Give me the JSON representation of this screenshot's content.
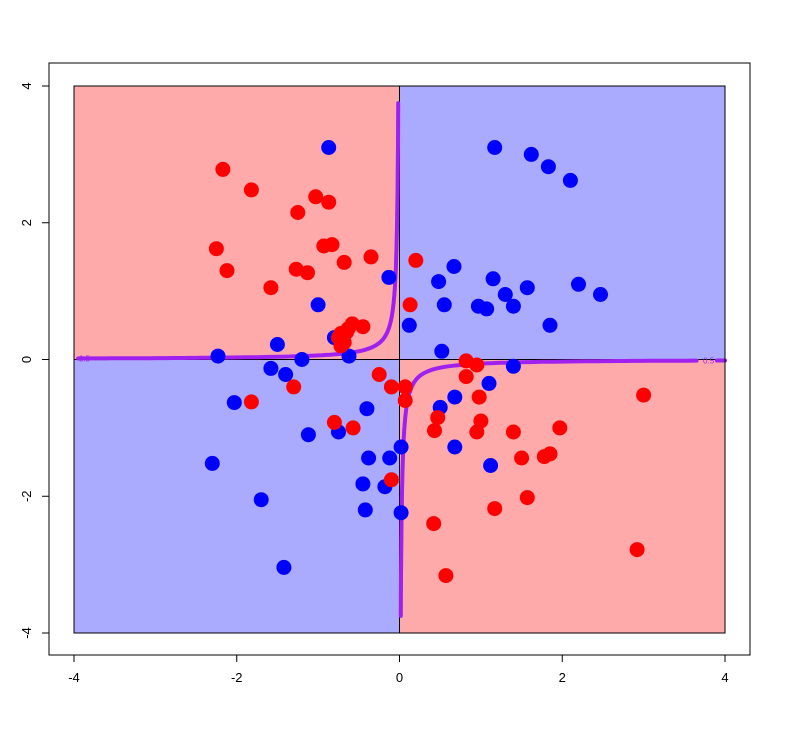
{
  "chart_data": {
    "type": "scatter",
    "title": "",
    "xlabel": "",
    "ylabel": "",
    "xlim": [
      -4,
      4
    ],
    "ylim": [
      -4,
      4
    ],
    "x_ticks": [
      -4,
      -2,
      0,
      2,
      4
    ],
    "y_ticks": [
      -4,
      -2,
      0,
      2,
      4
    ],
    "x_tick_labels": [
      "-4",
      "-2",
      "0",
      "2",
      "4"
    ],
    "y_tick_labels": [
      "-4",
      "-2",
      "0",
      "2",
      "4"
    ],
    "grid": false,
    "legend": "none",
    "background_regions": [
      {
        "quadrant": "top-left",
        "class": "red",
        "color": "#ffaaaa"
      },
      {
        "quadrant": "top-right",
        "class": "blue",
        "color": "#aaaaff"
      },
      {
        "quadrant": "bottom-left",
        "class": "blue",
        "color": "#aaaaff"
      },
      {
        "quadrant": "bottom-right",
        "class": "red",
        "color": "#ffaaaa"
      }
    ],
    "contour": {
      "level_label": "0.5",
      "color": "#a020f0",
      "equation": "x*y = -0.06"
    },
    "series": [
      {
        "color": "#0000ff",
        "points": [
          [
            -0.87,
            3.1
          ],
          [
            1.17,
            3.1
          ],
          [
            1.62,
            3.0
          ],
          [
            1.83,
            2.82
          ],
          [
            2.1,
            2.62
          ],
          [
            0.67,
            1.36
          ],
          [
            1.15,
            1.18
          ],
          [
            1.57,
            1.05
          ],
          [
            0.48,
            1.14
          ],
          [
            1.3,
            0.95
          ],
          [
            2.2,
            1.1
          ],
          [
            2.47,
            0.95
          ],
          [
            0.97,
            0.78
          ],
          [
            1.07,
            0.74
          ],
          [
            1.4,
            0.78
          ],
          [
            0.55,
            0.8
          ],
          [
            1.85,
            0.5
          ],
          [
            0.12,
            0.5
          ],
          [
            -1.0,
            0.8
          ],
          [
            -0.13,
            1.2
          ],
          [
            -0.8,
            0.32
          ],
          [
            -0.62,
            0.05
          ],
          [
            -1.5,
            0.22
          ],
          [
            -2.23,
            0.05
          ],
          [
            -1.2,
            0.0
          ],
          [
            0.52,
            0.12
          ],
          [
            -1.58,
            -0.13
          ],
          [
            -1.4,
            -0.22
          ],
          [
            1.4,
            -0.1
          ],
          [
            1.1,
            -0.35
          ],
          [
            0.68,
            -0.55
          ],
          [
            0.5,
            -0.7
          ],
          [
            -2.03,
            -0.63
          ],
          [
            -0.4,
            -0.72
          ],
          [
            -1.12,
            -1.1
          ],
          [
            -0.75,
            -1.06
          ],
          [
            0.68,
            -1.28
          ],
          [
            0.02,
            -1.28
          ],
          [
            -0.38,
            -1.44
          ],
          [
            -0.12,
            -1.44
          ],
          [
            1.12,
            -1.55
          ],
          [
            -2.3,
            -1.52
          ],
          [
            -0.45,
            -1.82
          ],
          [
            -0.18,
            -1.86
          ],
          [
            -1.7,
            -2.05
          ],
          [
            -0.42,
            -2.2
          ],
          [
            0.02,
            -2.24
          ],
          [
            -1.42,
            -3.04
          ]
        ]
      },
      {
        "color": "#ff0000",
        "points": [
          [
            -2.17,
            2.78
          ],
          [
            -1.82,
            2.48
          ],
          [
            -1.03,
            2.38
          ],
          [
            -0.87,
            2.3
          ],
          [
            -1.25,
            2.15
          ],
          [
            -2.25,
            1.62
          ],
          [
            -0.93,
            1.66
          ],
          [
            -0.83,
            1.68
          ],
          [
            -0.35,
            1.5
          ],
          [
            -0.68,
            1.42
          ],
          [
            0.2,
            1.45
          ],
          [
            -2.12,
            1.3
          ],
          [
            -1.27,
            1.32
          ],
          [
            -1.13,
            1.27
          ],
          [
            -1.58,
            1.05
          ],
          [
            0.13,
            0.8
          ],
          [
            -0.58,
            0.52
          ],
          [
            -0.63,
            0.45
          ],
          [
            -0.45,
            0.48
          ],
          [
            -0.65,
            0.4
          ],
          [
            -0.72,
            0.38
          ],
          [
            -0.75,
            0.32
          ],
          [
            -0.68,
            0.25
          ],
          [
            -0.72,
            0.2
          ],
          [
            0.82,
            -0.02
          ],
          [
            0.95,
            -0.08
          ],
          [
            -0.25,
            -0.22
          ],
          [
            0.82,
            -0.25
          ],
          [
            -0.1,
            -0.4
          ],
          [
            0.07,
            -0.4
          ],
          [
            -1.3,
            -0.4
          ],
          [
            0.98,
            -0.55
          ],
          [
            3.0,
            -0.52
          ],
          [
            -1.82,
            -0.62
          ],
          [
            0.07,
            -0.6
          ],
          [
            0.47,
            -0.85
          ],
          [
            1.0,
            -0.9
          ],
          [
            -0.8,
            -0.92
          ],
          [
            0.43,
            -1.04
          ],
          [
            0.95,
            -1.06
          ],
          [
            1.4,
            -1.06
          ],
          [
            1.97,
            -1.0
          ],
          [
            -0.57,
            -1.0
          ],
          [
            1.85,
            -1.38
          ],
          [
            1.78,
            -1.42
          ],
          [
            1.5,
            -1.44
          ],
          [
            -0.1,
            -1.76
          ],
          [
            1.57,
            -2.02
          ],
          [
            1.17,
            -2.18
          ],
          [
            0.42,
            -2.4
          ],
          [
            2.92,
            -2.78
          ],
          [
            0.57,
            -3.16
          ]
        ]
      }
    ]
  }
}
